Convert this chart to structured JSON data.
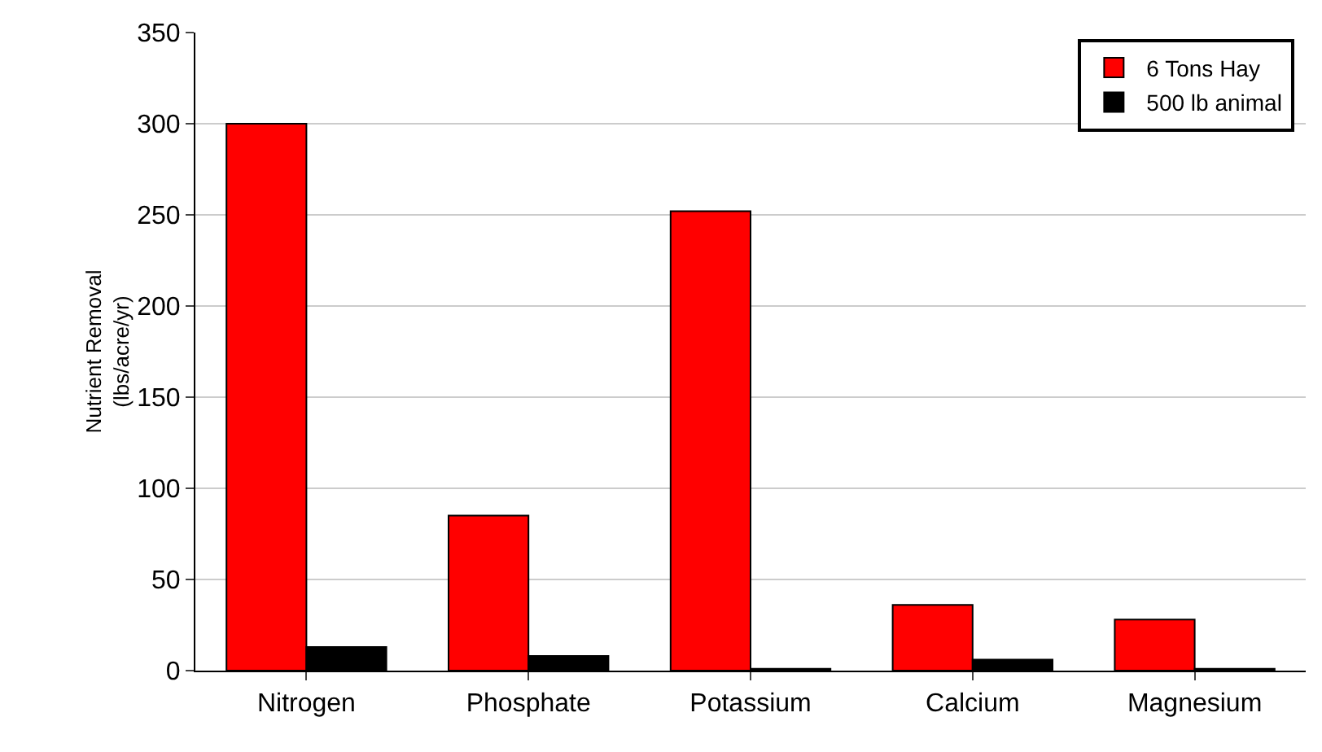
{
  "chart_data": {
    "type": "bar",
    "ylabel": "Nutrient Removal\n(lbs/acre/yr)",
    "categories": [
      "Nitrogen",
      "Phosphate",
      "Potassium",
      "Calcium",
      "Magnesium"
    ],
    "series": [
      {
        "name": "6 Tons Hay",
        "color": "#ff0000",
        "values": [
          300,
          85,
          252,
          36,
          28
        ]
      },
      {
        "name": "500 lb animal",
        "color": "#000000",
        "values": [
          13,
          8,
          1,
          6,
          1
        ]
      }
    ],
    "ylim": [
      0,
      350
    ],
    "yticks": [
      0,
      50,
      100,
      150,
      200,
      250,
      300,
      350
    ],
    "grid": "y",
    "legend": "top right"
  }
}
